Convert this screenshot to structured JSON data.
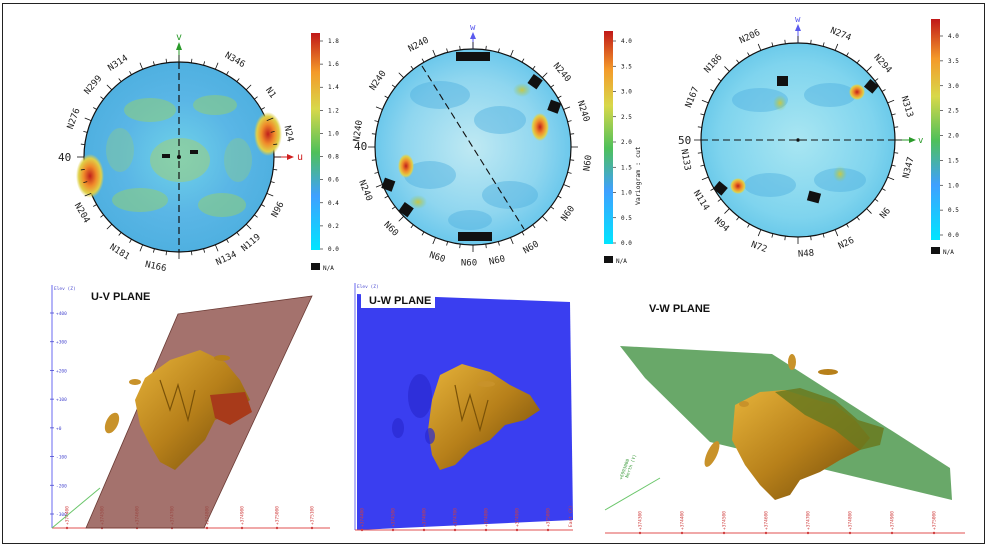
{
  "polar_plots": [
    {
      "axis_label": "v",
      "left_label": "40",
      "right_axis_label": "u",
      "directions": [
        "N314",
        "N346",
        "N1",
        "N24",
        "N96",
        "N119",
        "N134",
        "N166",
        "N181",
        "N204",
        "N276",
        "N299"
      ],
      "legend_ticks": [
        "1.8",
        "1.6",
        "1.4",
        "1.2",
        "1.0",
        "0.8",
        "0.6",
        "0.4",
        "0.2",
        "0.0"
      ],
      "legend_na": "N/A"
    },
    {
      "axis_label": "w",
      "left_label": "40",
      "right_axis_label": "",
      "legend_title": "Variogram : cut",
      "directions": [
        "N240",
        "N240",
        "N240",
        "N60",
        "N60",
        "N60",
        "N60",
        "N60",
        "N60",
        "N60",
        "N240",
        "N240",
        "N240"
      ],
      "legend_ticks": [
        "4.0",
        "3.5",
        "3.0",
        "2.5",
        "2.0",
        "1.5",
        "1.0",
        "0.5",
        "0.0"
      ],
      "legend_na": "N/A"
    },
    {
      "axis_label": "w",
      "left_label": "50",
      "right_axis_label": "v",
      "directions": [
        "N206",
        "N274",
        "N294",
        "N313",
        "N347",
        "N6",
        "N26",
        "N48",
        "N72",
        "N94",
        "N114",
        "N133",
        "N167",
        "N186"
      ],
      "legend_ticks": [
        "4.0",
        "3.5",
        "3.0",
        "2.5",
        "2.0",
        "1.5",
        "1.0",
        "0.5",
        "0.0"
      ],
      "legend_na": "N/A"
    }
  ],
  "views3d": [
    {
      "title": "U-V PLANE",
      "axis_title": "Elev (Z)",
      "y_ticks": [
        "+400",
        "+300",
        "+200",
        "+100",
        "+0",
        "-100",
        "-200",
        "-300"
      ],
      "x_ticks": [
        "+374400",
        "+374500",
        "+374600",
        "+374700",
        "+374800",
        "+374900",
        "+375000",
        "+375100"
      ],
      "plane_color": "#8a4a44"
    },
    {
      "title": "U-W PLANE",
      "axis_title": "Elev (Z)",
      "y_ticks": [
        "",
        "",
        "",
        "",
        "",
        "",
        "",
        ""
      ],
      "x_ticks": [
        "+374400",
        "+374500",
        "+374600",
        "+374700",
        "+374800",
        "+374900",
        "+375000"
      ],
      "x_axis_title": "East (X)",
      "plane_color": "#3a3ef0"
    },
    {
      "title": "V-W PLANE",
      "north_label": "North (Y)",
      "north_tick": "+6993000",
      "x_ticks": [
        "+374300",
        "+374400",
        "+374500",
        "+374600",
        "+374700",
        "+374800",
        "+374900",
        "+375000"
      ],
      "plane_color": "#3f8f3f"
    }
  ]
}
